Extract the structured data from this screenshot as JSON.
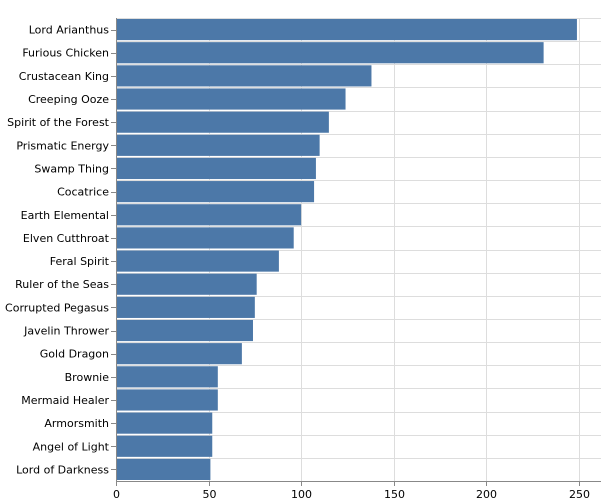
{
  "chart_data": {
    "type": "bar",
    "orientation": "horizontal",
    "bar_color": "#4c78a8",
    "grid": true,
    "title": "",
    "xlabel": "",
    "ylabel": "",
    "xlim": [
      0,
      262
    ],
    "xticks": [
      0,
      50,
      100,
      150,
      200,
      250
    ],
    "categories": [
      "Lord Arianthus",
      "Furious Chicken",
      "Crustacean King",
      "Creeping Ooze",
      "Spirit of the Forest",
      "Prismatic Energy",
      "Swamp Thing",
      "Cocatrice",
      "Earth Elemental",
      "Elven Cutthroat",
      "Feral Spirit",
      "Ruler of the Seas",
      "Corrupted Pegasus",
      "Javelin Thrower",
      "Gold Dragon",
      "Brownie",
      "Mermaid Healer",
      "Armorsmith",
      "Angel of Light",
      "Lord of Darkness"
    ],
    "values": [
      249,
      231,
      138,
      124,
      115,
      110,
      108,
      107,
      100,
      96,
      88,
      76,
      75,
      74,
      68,
      55,
      55,
      52,
      52,
      51
    ]
  }
}
